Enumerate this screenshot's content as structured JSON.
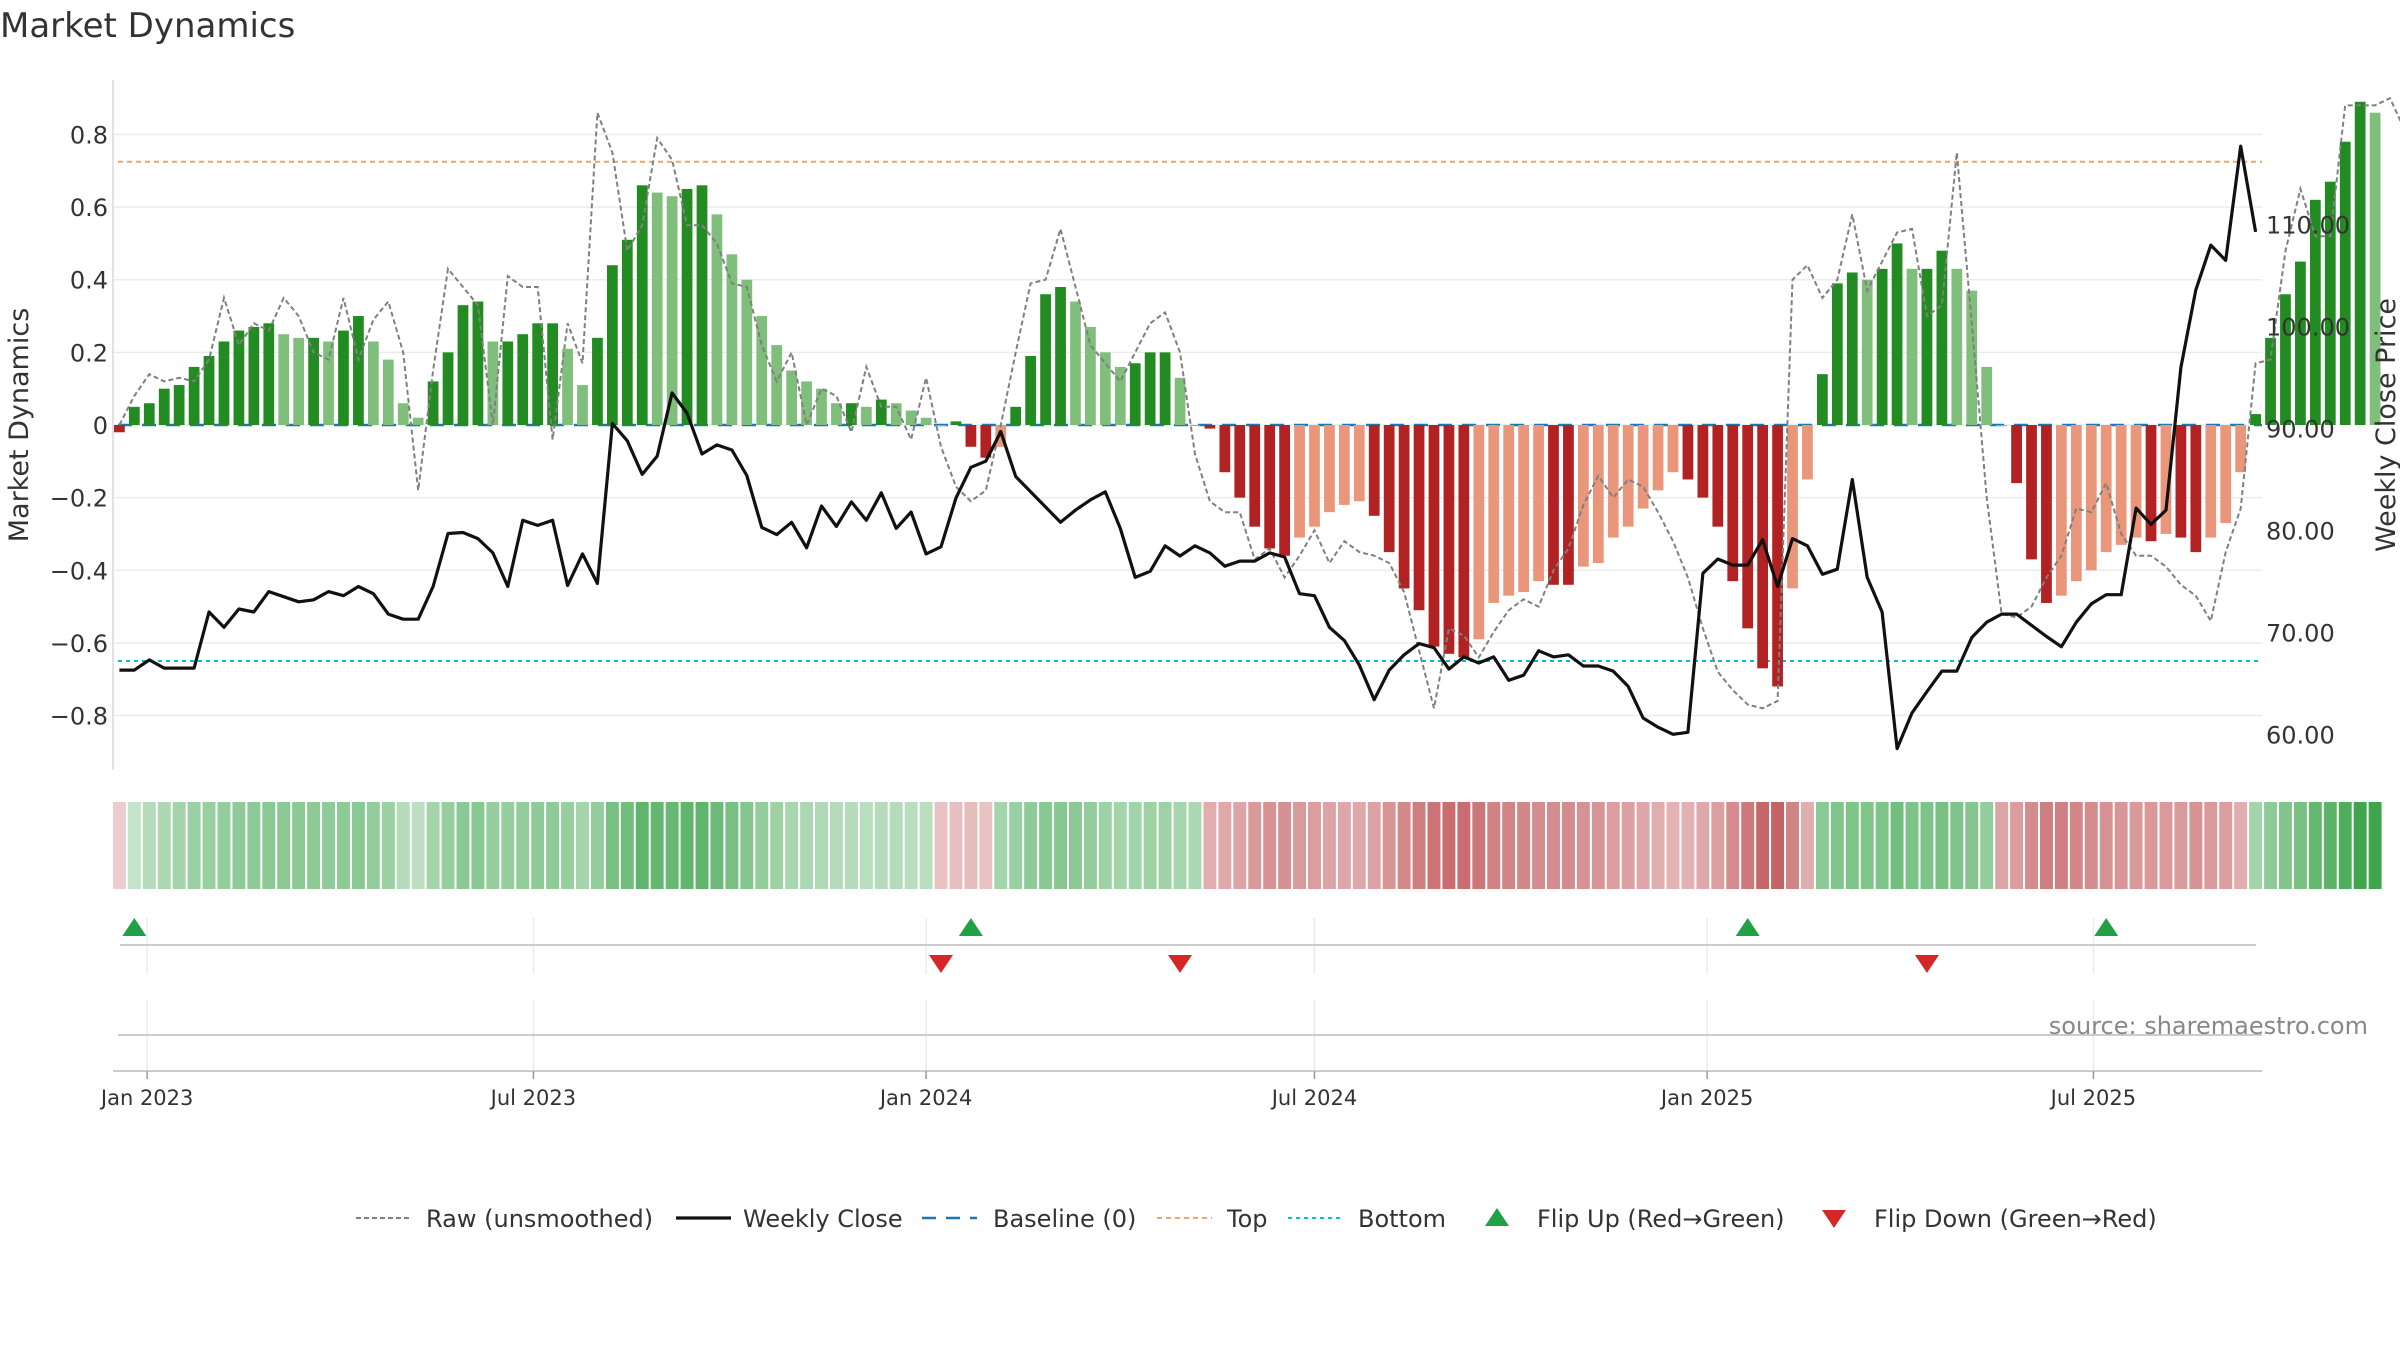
{
  "chart_data": {
    "type": "bar",
    "title": "Market Dynamics",
    "ylabel": "Market Dynamics",
    "y2label": "Weekly Close Price",
    "source": "source: sharemaestro.com",
    "ylim": [
      -0.95,
      0.95
    ],
    "y2lim": [
      56.5,
      124.2
    ],
    "yticks": [
      0.8,
      0.6,
      0.4,
      0.2,
      0,
      -0.2,
      -0.4,
      -0.6,
      -0.8
    ],
    "ytick_labels": [
      "0.8",
      "0.6",
      "0.4",
      "0.2",
      "0",
      "−0.2",
      "−0.4",
      "−0.6",
      "−0.8"
    ],
    "y2ticks": [
      110,
      100,
      90,
      80,
      70,
      60
    ],
    "y2tick_labels": [
      "110.00",
      "100.00",
      "90.00",
      "80.00",
      "70.00",
      "60.00"
    ],
    "x_start": "2022-12-16",
    "x_end": "2025-09-18",
    "xticks": [
      {
        "date": "2023-01-01",
        "label": "Jan 2023"
      },
      {
        "date": "2023-07-01",
        "label": "Jul 2023"
      },
      {
        "date": "2024-01-01",
        "label": "Jan 2024"
      },
      {
        "date": "2024-07-01",
        "label": "Jul 2024"
      },
      {
        "date": "2025-01-01",
        "label": "Jan 2025"
      },
      {
        "date": "2025-07-01",
        "label": "Jul 2025"
      }
    ],
    "first_week": "2022-12-19",
    "top_level": 0.725,
    "bottom_level": -0.65,
    "baseline": 0,
    "grid": true,
    "legend_position": "bottom",
    "colors": {
      "green_dark": "#228b22",
      "green_light": "#7fbf7b",
      "red_dark": "#b22222",
      "red_light": "#e9967a",
      "top_line": "#f4a460",
      "bottom_line": "#00bcd4",
      "baseline": "#1f77b4",
      "price_line": "#111111",
      "raw_line": "#808080",
      "flip_up": "#22a045",
      "flip_down": "#d62728"
    },
    "series": [
      {
        "name": "Market Dynamics",
        "values": [
          -0.02,
          0.05,
          0.06,
          0.1,
          0.11,
          0.16,
          0.19,
          0.23,
          0.26,
          0.27,
          0.28,
          0.25,
          0.24,
          0.24,
          0.23,
          0.26,
          0.3,
          0.23,
          0.18,
          0.06,
          0.02,
          0.12,
          0.2,
          0.33,
          0.34,
          0.23,
          0.23,
          0.25,
          0.28,
          0.28,
          0.21,
          0.11,
          0.24,
          0.44,
          0.51,
          0.66,
          0.64,
          0.63,
          0.65,
          0.66,
          0.58,
          0.47,
          0.4,
          0.3,
          0.22,
          0.15,
          0.12,
          0.1,
          0.06,
          0.06,
          0.05,
          0.07,
          0.06,
          0.04,
          0.02,
          0.0,
          0.01,
          -0.06,
          -0.09,
          -0.06,
          0.05,
          0.19,
          0.36,
          0.38,
          0.34,
          0.27,
          0.2,
          0.16,
          0.17,
          0.2,
          0.2,
          0.13,
          0.0,
          -0.01,
          -0.13,
          -0.2,
          -0.28,
          -0.34,
          -0.36,
          -0.31,
          -0.28,
          -0.24,
          -0.22,
          -0.21,
          -0.25,
          -0.35,
          -0.45,
          -0.51,
          -0.61,
          -0.63,
          -0.64,
          -0.59,
          -0.49,
          -0.47,
          -0.46,
          -0.43,
          -0.44,
          -0.44,
          -0.39,
          -0.38,
          -0.31,
          -0.28,
          -0.23,
          -0.18,
          -0.13,
          -0.15,
          -0.2,
          -0.28,
          -0.43,
          -0.56,
          -0.67,
          -0.72,
          -0.45,
          -0.15,
          0.14,
          0.39,
          0.42,
          0.4,
          0.43,
          0.5,
          0.43,
          0.43,
          0.48,
          0.43,
          0.37,
          0.16,
          0.0,
          -0.16,
          -0.37,
          -0.49,
          -0.47,
          -0.43,
          -0.4,
          -0.35,
          -0.33,
          -0.31,
          -0.32,
          -0.3,
          -0.31,
          -0.35,
          -0.31,
          -0.27,
          -0.13,
          0.03,
          0.24,
          0.36,
          0.45,
          0.62,
          0.67,
          0.78,
          0.89,
          0.86
        ]
      },
      {
        "name": "Raw (unsmoothed)",
        "values": [
          0.0,
          0.08,
          0.14,
          0.12,
          0.13,
          0.12,
          0.18,
          0.35,
          0.22,
          0.28,
          0.26,
          0.35,
          0.3,
          0.2,
          0.18,
          0.35,
          0.18,
          0.29,
          0.34,
          0.2,
          -0.18,
          0.15,
          0.43,
          0.38,
          0.33,
          0.0,
          0.41,
          0.38,
          0.38,
          -0.04,
          0.28,
          0.17,
          0.86,
          0.75,
          0.48,
          0.55,
          0.79,
          0.73,
          0.55,
          0.55,
          0.5,
          0.39,
          0.38,
          0.22,
          0.12,
          0.2,
          0.0,
          0.1,
          0.08,
          -0.02,
          0.16,
          0.05,
          0.05,
          -0.04,
          0.13,
          -0.06,
          -0.17,
          -0.21,
          -0.18,
          0.0,
          0.2,
          0.39,
          0.4,
          0.54,
          0.38,
          0.22,
          0.17,
          0.12,
          0.2,
          0.28,
          0.31,
          0.2,
          -0.08,
          -0.21,
          -0.24,
          -0.24,
          -0.37,
          -0.34,
          -0.42,
          -0.36,
          -0.29,
          -0.38,
          -0.32,
          -0.35,
          -0.36,
          -0.38,
          -0.46,
          -0.62,
          -0.78,
          -0.56,
          -0.58,
          -0.64,
          -0.57,
          -0.51,
          -0.48,
          -0.5,
          -0.4,
          -0.34,
          -0.22,
          -0.14,
          -0.2,
          -0.15,
          -0.17,
          -0.24,
          -0.32,
          -0.42,
          -0.56,
          -0.68,
          -0.73,
          -0.77,
          -0.78,
          -0.76,
          0.4,
          0.44,
          0.35,
          0.4,
          0.58,
          0.37,
          0.45,
          0.53,
          0.54,
          0.3,
          0.33,
          0.75,
          0.28,
          -0.2,
          -0.52,
          -0.53,
          -0.5,
          -0.42,
          -0.36,
          -0.23,
          -0.24,
          -0.16,
          -0.3,
          -0.36,
          -0.36,
          -0.39,
          -0.44,
          -0.47,
          -0.54,
          -0.35,
          -0.23,
          0.17,
          0.18,
          0.48,
          0.65,
          0.52,
          0.52,
          0.88,
          0.88,
          0.88,
          0.9,
          0.81
        ]
      },
      {
        "name": "Weekly Close",
        "values": [
          66.3,
          66.3,
          67.3,
          66.5,
          66.5,
          66.5,
          72.0,
          70.5,
          72.3,
          72.0,
          74.0,
          73.5,
          73.0,
          73.2,
          74.0,
          73.6,
          74.5,
          73.8,
          71.8,
          71.3,
          71.3,
          74.5,
          79.7,
          79.8,
          79.2,
          77.8,
          74.5,
          81.0,
          80.5,
          81.0,
          74.6,
          77.7,
          74.8,
          90.5,
          88.8,
          85.5,
          87.3,
          93.5,
          91.5,
          87.5,
          88.4,
          87.9,
          85.4,
          80.3,
          79.6,
          80.8,
          78.3,
          82.4,
          80.4,
          82.8,
          81.0,
          83.7,
          80.2,
          81.8,
          77.7,
          78.4,
          83.2,
          86.2,
          86.8,
          89.7,
          85.3,
          83.8,
          82.3,
          80.8,
          82.0,
          83.0,
          83.8,
          80.2,
          75.4,
          76.0,
          78.5,
          77.5,
          78.5,
          77.8,
          76.5,
          77.0,
          77.0,
          77.8,
          77.4,
          73.8,
          73.6,
          70.5,
          69.2,
          66.8,
          63.4,
          66.3,
          67.8,
          68.9,
          68.5,
          66.4,
          67.6,
          67.0,
          67.6,
          65.3,
          65.8,
          68.2,
          67.6,
          67.8,
          66.7,
          66.7,
          66.2,
          64.7,
          61.6,
          60.7,
          60.0,
          60.2,
          75.8,
          77.2,
          76.6,
          76.6,
          79.1,
          74.5,
          79.2,
          78.5,
          75.7,
          76.2,
          85.0,
          75.4,
          72.0,
          58.6,
          62.1,
          64.2,
          66.2,
          66.2,
          69.5,
          71.0,
          71.8,
          71.8,
          70.7,
          69.6,
          68.6,
          71.0,
          72.8,
          73.7,
          73.7,
          82.2,
          80.6,
          82.0,
          96.0,
          103.6,
          108.0,
          106.5,
          117.7,
          109.3
        ]
      }
    ],
    "momentum_strip": [
      -0.12,
      0.1,
      0.2,
      0.25,
      0.3,
      0.35,
      0.37,
      0.4,
      0.42,
      0.43,
      0.45,
      0.45,
      0.44,
      0.43,
      0.42,
      0.43,
      0.45,
      0.4,
      0.35,
      0.2,
      0.15,
      0.3,
      0.38,
      0.45,
      0.46,
      0.38,
      0.38,
      0.4,
      0.42,
      0.42,
      0.37,
      0.3,
      0.4,
      0.55,
      0.6,
      0.7,
      0.68,
      0.66,
      0.7,
      0.7,
      0.62,
      0.55,
      0.48,
      0.4,
      0.33,
      0.27,
      0.25,
      0.23,
      0.2,
      0.2,
      0.18,
      0.2,
      0.2,
      0.18,
      0.17,
      -0.18,
      -0.2,
      -0.22,
      -0.18,
      0.3,
      0.36,
      0.42,
      0.46,
      0.47,
      0.44,
      0.4,
      0.33,
      0.3,
      0.31,
      0.33,
      0.33,
      0.28,
      0.25,
      -0.3,
      -0.33,
      -0.36,
      -0.42,
      -0.46,
      -0.47,
      -0.42,
      -0.4,
      -0.36,
      -0.34,
      -0.33,
      -0.37,
      -0.45,
      -0.52,
      -0.58,
      -0.65,
      -0.68,
      -0.68,
      -0.63,
      -0.56,
      -0.54,
      -0.53,
      -0.5,
      -0.5,
      -0.5,
      -0.46,
      -0.45,
      -0.4,
      -0.38,
      -0.34,
      -0.3,
      -0.27,
      -0.28,
      -0.33,
      -0.38,
      -0.5,
      -0.62,
      -0.72,
      -0.75,
      -0.55,
      -0.3,
      0.45,
      0.5,
      0.52,
      0.5,
      0.52,
      0.58,
      0.52,
      0.52,
      0.55,
      0.52,
      0.48,
      0.4,
      -0.36,
      -0.4,
      -0.5,
      -0.58,
      -0.57,
      -0.53,
      -0.5,
      -0.46,
      -0.44,
      -0.42,
      -0.43,
      -0.42,
      -0.42,
      -0.46,
      -0.42,
      -0.4,
      -0.3,
      0.3,
      0.42,
      0.5,
      0.55,
      0.68,
      0.72,
      0.8,
      0.9,
      0.9
    ],
    "flip_up": [
      "2022-12-26",
      "2024-01-22",
      "2025-01-20",
      "2025-07-07"
    ],
    "flip_down": [
      "2024-01-08",
      "2024-04-29",
      "2025-04-14"
    ],
    "legend": [
      {
        "key": "raw",
        "label": "Raw (unsmoothed)"
      },
      {
        "key": "close",
        "label": "Weekly Close"
      },
      {
        "key": "baseline",
        "label": "Baseline (0)"
      },
      {
        "key": "top",
        "label": "Top"
      },
      {
        "key": "bottom",
        "label": "Bottom"
      },
      {
        "key": "flip-up",
        "label": "Flip Up (Red→Green)"
      },
      {
        "key": "flip-down",
        "label": "Flip Down (Green→Red)"
      }
    ]
  }
}
